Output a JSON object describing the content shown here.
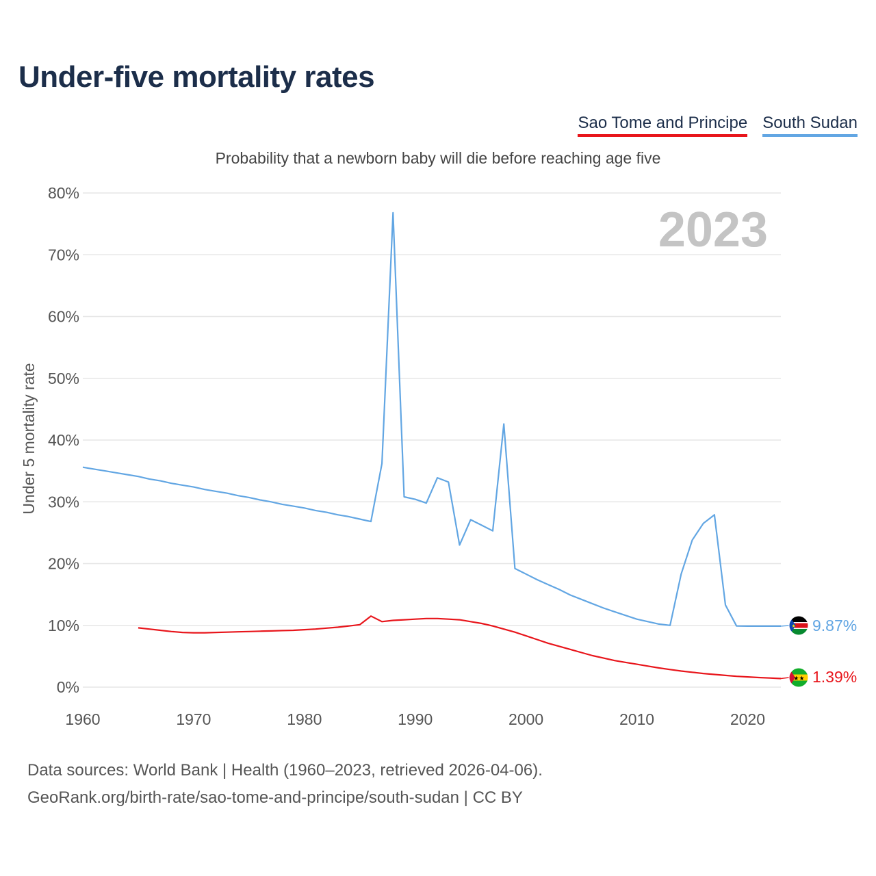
{
  "title": "Under-five mortality rates",
  "subtitle": "Probability that a newborn baby will die before reaching age five",
  "year_overlay": "2023",
  "footer": {
    "line1": "Data sources: World Bank | Health (1960–2023, retrieved 2026-04-06).",
    "line2": "GeoRank.org/birth-rate/sao-tome-and-principe/south-sudan | CC BY"
  },
  "colors": {
    "sao_tome": "#e8151b",
    "south_sudan": "#62a6e3",
    "title": "#1c2e4a",
    "grid": "#e6e6e6"
  },
  "chart_data": {
    "type": "line",
    "title": "Under-five mortality rates",
    "subtitle": "Probability that a newborn baby will die before reaching age five",
    "xlabel": "",
    "ylabel": "Under 5 mortality rate",
    "xlim": [
      1960,
      2023
    ],
    "ylim": [
      0,
      80
    ],
    "x_ticks": [
      1960,
      1970,
      1980,
      1990,
      2000,
      2010,
      2020
    ],
    "y_ticks": [
      0,
      10,
      20,
      30,
      40,
      50,
      60,
      70,
      80
    ],
    "y_tick_labels": [
      "0%",
      "10%",
      "20%",
      "30%",
      "40%",
      "50%",
      "60%",
      "70%",
      "80%"
    ],
    "grid": true,
    "legend": "top-right",
    "series": [
      {
        "name": "Sao Tome and Principe",
        "color": "#e8151b",
        "end_label": "1.39%",
        "flag_icon": "sao-tome-flag-icon",
        "x": [
          1965,
          1966,
          1967,
          1968,
          1969,
          1970,
          1971,
          1972,
          1973,
          1974,
          1975,
          1976,
          1977,
          1978,
          1979,
          1980,
          1981,
          1982,
          1983,
          1984,
          1985,
          1986,
          1987,
          1988,
          1989,
          1990,
          1991,
          1992,
          1993,
          1994,
          1995,
          1996,
          1997,
          1998,
          1999,
          2000,
          2001,
          2002,
          2003,
          2004,
          2005,
          2006,
          2007,
          2008,
          2009,
          2010,
          2011,
          2012,
          2013,
          2014,
          2015,
          2016,
          2017,
          2018,
          2019,
          2020,
          2021,
          2022,
          2023
        ],
        "values": [
          9.6,
          9.4,
          9.2,
          9.0,
          8.85,
          8.8,
          8.8,
          8.85,
          8.9,
          8.95,
          9.0,
          9.05,
          9.1,
          9.15,
          9.2,
          9.3,
          9.4,
          9.55,
          9.7,
          9.9,
          10.1,
          11.5,
          10.6,
          10.8,
          10.9,
          11.0,
          11.1,
          11.1,
          11.0,
          10.9,
          10.6,
          10.3,
          9.9,
          9.4,
          8.9,
          8.3,
          7.7,
          7.1,
          6.6,
          6.1,
          5.6,
          5.1,
          4.7,
          4.3,
          4.0,
          3.7,
          3.4,
          3.1,
          2.85,
          2.6,
          2.4,
          2.2,
          2.05,
          1.9,
          1.75,
          1.65,
          1.55,
          1.47,
          1.39
        ]
      },
      {
        "name": "South Sudan",
        "color": "#62a6e3",
        "end_label": "9.87%",
        "flag_icon": "south-sudan-flag-icon",
        "x": [
          1960,
          1961,
          1962,
          1963,
          1964,
          1965,
          1966,
          1967,
          1968,
          1969,
          1970,
          1971,
          1972,
          1973,
          1974,
          1975,
          1976,
          1977,
          1978,
          1979,
          1980,
          1981,
          1982,
          1983,
          1984,
          1985,
          1986,
          1987,
          1988,
          1989,
          1990,
          1991,
          1992,
          1993,
          1994,
          1995,
          1996,
          1997,
          1998,
          1999,
          2000,
          2001,
          2002,
          2003,
          2004,
          2005,
          2006,
          2007,
          2008,
          2009,
          2010,
          2011,
          2012,
          2013,
          2014,
          2015,
          2016,
          2017,
          2018,
          2019,
          2020,
          2021,
          2022,
          2023
        ],
        "values": [
          35.6,
          35.3,
          35.0,
          34.7,
          34.4,
          34.1,
          33.7,
          33.4,
          33.0,
          32.7,
          32.4,
          32.0,
          31.7,
          31.4,
          31.0,
          30.7,
          30.3,
          30.0,
          29.6,
          29.3,
          29.0,
          28.6,
          28.3,
          27.9,
          27.6,
          27.2,
          26.8,
          36.2,
          76.8,
          30.8,
          30.4,
          29.8,
          33.9,
          33.2,
          23.0,
          27.1,
          26.2,
          25.3,
          42.6,
          19.2,
          18.3,
          17.4,
          16.6,
          15.8,
          14.9,
          14.2,
          13.5,
          12.8,
          12.2,
          11.6,
          11.0,
          10.6,
          10.2,
          10.0,
          18.3,
          23.8,
          26.5,
          27.9,
          13.3,
          9.9,
          9.87,
          9.87,
          9.87,
          9.87
        ]
      }
    ]
  }
}
